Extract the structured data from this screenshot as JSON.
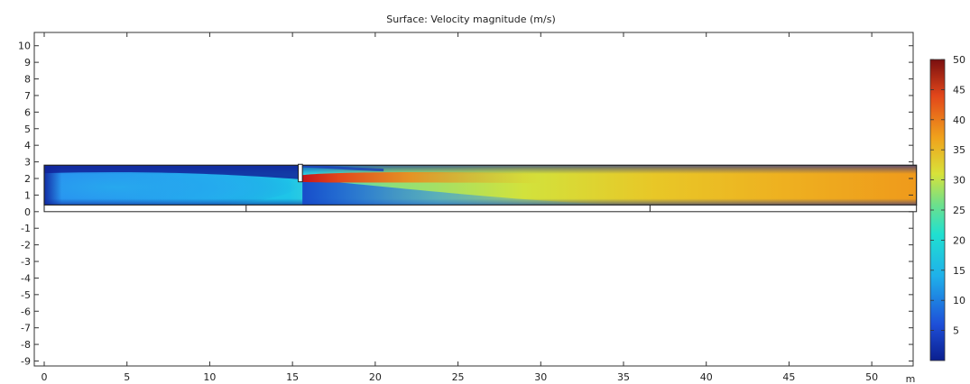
{
  "chart_data": {
    "type": "heatmap",
    "title": "Surface: Velocity magnitude (m/s)",
    "x_unit_label": "m",
    "xlim": [
      -0.6,
      52.5
    ],
    "ylim": [
      -9.3,
      10.8
    ],
    "x_ticks": [
      0,
      5,
      10,
      15,
      20,
      25,
      30,
      35,
      40,
      45,
      50
    ],
    "y_ticks": [
      10,
      9,
      8,
      7,
      6,
      5,
      4,
      3,
      2,
      1,
      0,
      -1,
      -2,
      -3,
      -4,
      -5,
      -6,
      -7,
      -8,
      -9
    ],
    "colorbar": {
      "ticks": [
        5,
        10,
        15,
        20,
        25,
        30,
        35,
        40,
        45,
        50
      ],
      "range": [
        0,
        50
      ],
      "colormap": "rainbow",
      "colors": [
        "#0b1f8f",
        "#1e4fd8",
        "#1fb0ea",
        "#20e0d0",
        "#6fe08a",
        "#d8e23a",
        "#f0a21c",
        "#e2461a",
        "#7a0f10"
      ]
    },
    "geometry": {
      "channel": {
        "x": [
          0,
          52.7
        ],
        "y": [
          0.4,
          2.8
        ]
      },
      "base_strip": {
        "x": [
          0,
          52.7
        ],
        "y": [
          0,
          0.4
        ]
      },
      "step": {
        "x": [
          12.2,
          12.2
        ]
      },
      "baffle": {
        "x": [
          15.35,
          15.6
        ],
        "y": [
          1.8,
          2.8
        ]
      },
      "marker": {
        "x": 36.6
      }
    },
    "flow_field": {
      "inlet_speed_range": [
        2,
        12
      ],
      "upstream_speed": 10,
      "jet_max_speed": 50,
      "outlet_speed": 38
    }
  }
}
